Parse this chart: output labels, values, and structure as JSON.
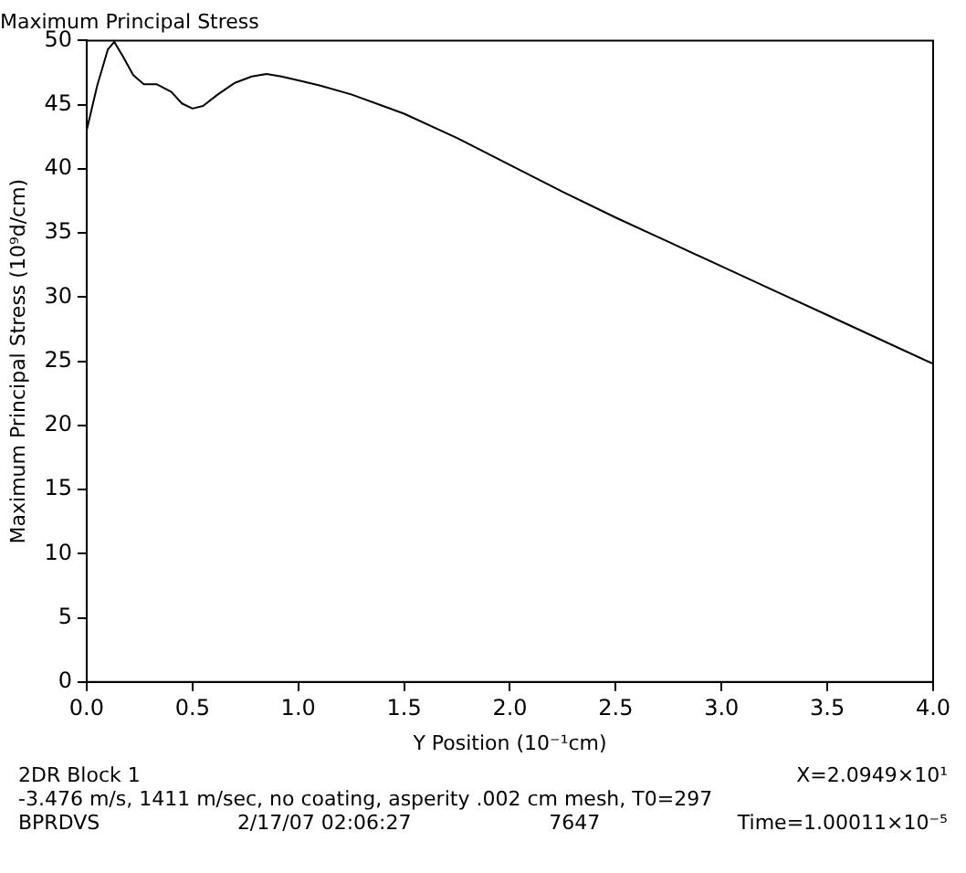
{
  "chart_data": {
    "type": "line",
    "title": "Maximum Principal Stress",
    "xlabel": "Y Position (10⁻¹cm)",
    "ylabel": "Maximum Principal Stress (10⁹d/cm)",
    "x": [
      0,
      0.05,
      0.1,
      0.13,
      0.17,
      0.22,
      0.27,
      0.33,
      0.4,
      0.45,
      0.5,
      0.55,
      0.62,
      0.7,
      0.78,
      0.85,
      0.92,
      1.0,
      1.1,
      1.25,
      1.4,
      1.5,
      1.75,
      2.0,
      2.25,
      2.5,
      2.75,
      3.0,
      3.25,
      3.5,
      3.75,
      4.0
    ],
    "series": [
      {
        "color": "#000000",
        "values": [
          43.0,
          46.5,
          49.3,
          49.9,
          48.8,
          47.3,
          46.6,
          46.6,
          46.0,
          45.1,
          44.7,
          44.9,
          45.8,
          46.7,
          47.2,
          47.4,
          47.2,
          46.9,
          46.5,
          45.8,
          44.9,
          44.3,
          42.4,
          40.3,
          38.2,
          36.2,
          34.3,
          32.4,
          30.5,
          28.6,
          26.7,
          24.8
        ]
      }
    ],
    "xlim": [
      0,
      4
    ],
    "xticks": [
      {
        "value": 0,
        "label": "0.0"
      },
      {
        "value": 0.5,
        "label": "0.5"
      },
      {
        "value": 1,
        "label": "1.0"
      },
      {
        "value": 1.5,
        "label": "1.5"
      },
      {
        "value": 2,
        "label": "2.0"
      },
      {
        "value": 2.5,
        "label": "2.5"
      },
      {
        "value": 3,
        "label": "3.0"
      },
      {
        "value": 3.5,
        "label": "3.5"
      },
      {
        "value": 4,
        "label": "4.0"
      }
    ],
    "ylim": [
      0,
      50
    ],
    "yticks": [
      0,
      5,
      10,
      15,
      20,
      25,
      30,
      35,
      40,
      45,
      50
    ],
    "marker": "none",
    "line_style": "solid",
    "legend": false,
    "grid": false,
    "annotations": [
      "2DR Block 1",
      "X=2.0949×10¹",
      "-3.476 m/s, 1411 m/sec, no coating, asperity .002 cm mesh, T0=297",
      "BPRDVS",
      "2/17/07 02:06:27",
      "7647",
      "Time=1.00011×10⁻⁵"
    ]
  }
}
